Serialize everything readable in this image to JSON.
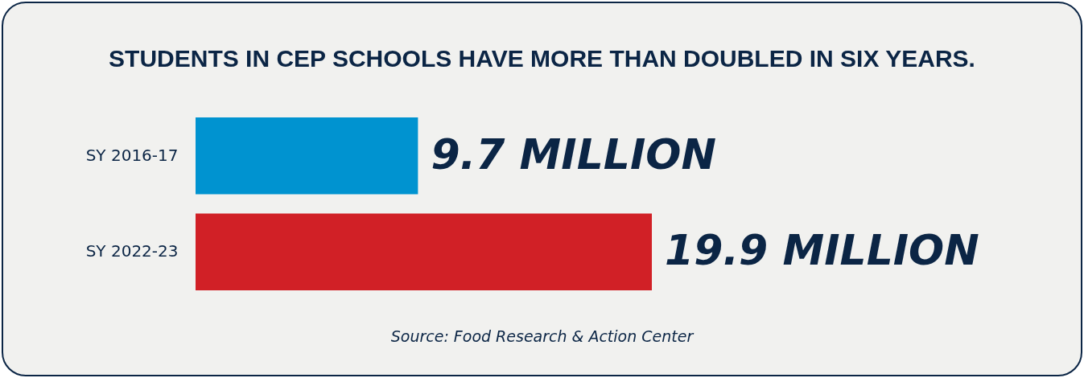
{
  "chart_data": {
    "type": "bar",
    "orientation": "horizontal",
    "title": "STUDENTS IN CEP SCHOOLS HAVE MORE THAN DOUBLED IN SIX YEARS.",
    "categories": [
      "SY 2016-17",
      "SY 2022-23"
    ],
    "values": [
      9.7,
      19.9
    ],
    "colors": [
      "#0093d0",
      "#d12026"
    ],
    "value_labels": [
      "9.7 MILLION",
      "19.9 MILLION"
    ],
    "annotations": [
      "Source: Food Research & Action Center"
    ]
  }
}
